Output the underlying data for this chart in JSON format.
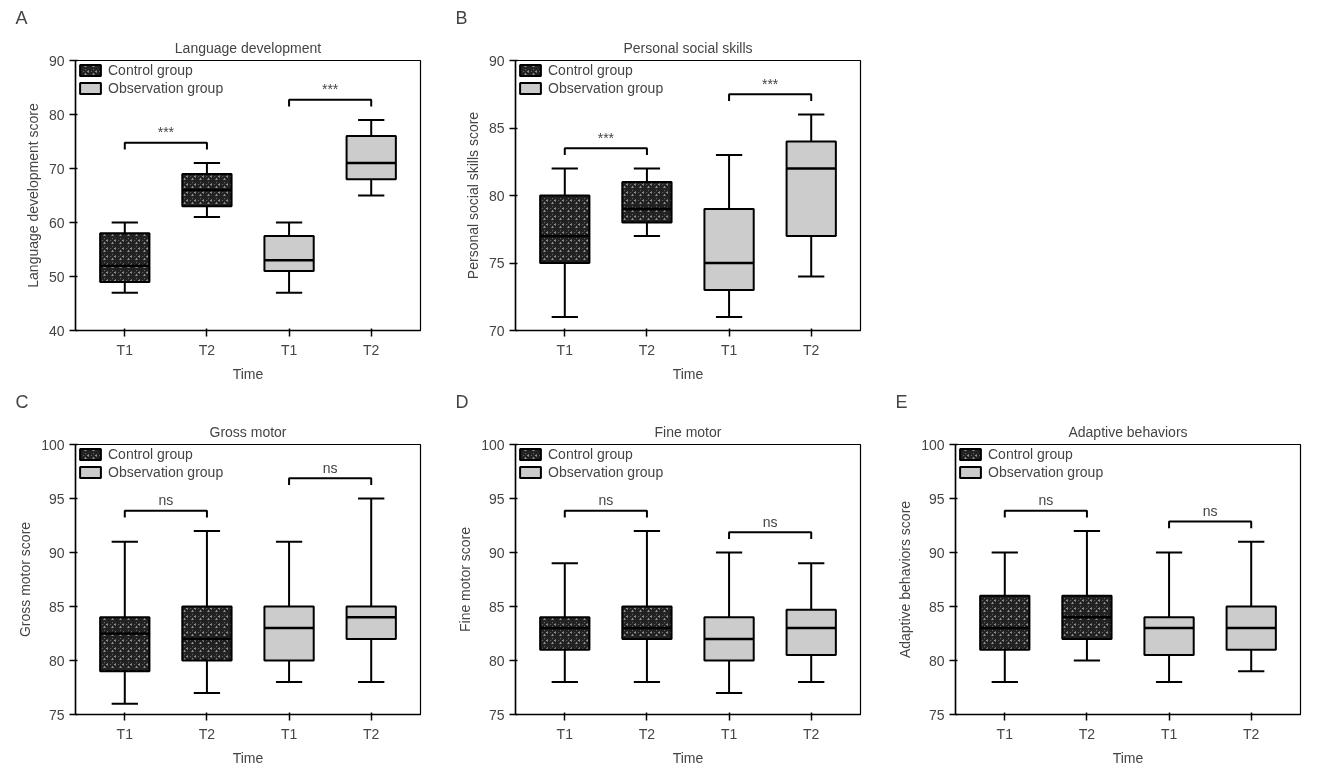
{
  "chart_data": [
    {
      "type": "box",
      "title": "Language development",
      "xlabel": "Time",
      "ylabel": "Language development score",
      "categories": [
        "T1",
        "T2",
        "T1",
        "T2"
      ],
      "ylim": [
        40,
        90
      ],
      "yticks": [
        40,
        50,
        60,
        70,
        80,
        90
      ],
      "grid": false,
      "legend": "top left",
      "series": [
        {
          "name": "Control group",
          "color": "#b4b4b4",
          "boxes": [
            {
              "low": 47,
              "q1": 49,
              "median": 52,
              "q3": 58,
              "high": 60
            },
            {
              "low": 61,
              "q1": 63,
              "median": 66,
              "q3": 69,
              "high": 71
            },
            null,
            null
          ]
        },
        {
          "name": "Observation group",
          "color": "#cccccc",
          "boxes": [
            null,
            null,
            {
              "low": 47,
              "q1": 51,
              "median": 53,
              "q3": 57.5,
              "high": 60
            },
            {
              "low": 65,
              "q1": 68,
              "median": 71,
              "q3": 76,
              "high": 79
            }
          ]
        }
      ],
      "annotations": [
        "A",
        "***",
        "***"
      ]
    },
    {
      "type": "box",
      "title": "Personal social skills",
      "xlabel": "Time",
      "ylabel": "Personal social skills score",
      "categories": [
        "T1",
        "T2",
        "T1",
        "T2"
      ],
      "ylim": [
        70,
        90
      ],
      "yticks": [
        70,
        75,
        80,
        85,
        90
      ],
      "grid": false,
      "legend": "top left",
      "series": [
        {
          "name": "Control group",
          "color": "#b4b4b4",
          "boxes": [
            {
              "low": 71,
              "q1": 75,
              "median": 77,
              "q3": 80,
              "high": 82
            },
            {
              "low": 77,
              "q1": 78,
              "median": 79,
              "q3": 81,
              "high": 82
            },
            null,
            null
          ]
        },
        {
          "name": "Observation group",
          "color": "#cccccc",
          "boxes": [
            null,
            null,
            {
              "low": 71,
              "q1": 73,
              "median": 75,
              "q3": 79,
              "high": 83
            },
            {
              "low": 74,
              "q1": 77,
              "median": 82,
              "q3": 84,
              "high": 86
            }
          ]
        }
      ],
      "annotations": [
        "B",
        "***",
        "***"
      ]
    },
    {
      "type": "box",
      "title": "Gross motor",
      "xlabel": "Time",
      "ylabel": "Gross motor score",
      "categories": [
        "T1",
        "T2",
        "T1",
        "T2"
      ],
      "ylim": [
        75,
        100
      ],
      "yticks": [
        75,
        80,
        85,
        90,
        95,
        100
      ],
      "grid": false,
      "legend": "top left",
      "series": [
        {
          "name": "Control group",
          "color": "#b4b4b4",
          "boxes": [
            {
              "low": 76,
              "q1": 79,
              "median": 82.5,
              "q3": 84,
              "high": 91
            },
            {
              "low": 77,
              "q1": 80,
              "median": 82,
              "q3": 85,
              "high": 92
            },
            null,
            null
          ]
        },
        {
          "name": "Observation group",
          "color": "#cccccc",
          "boxes": [
            null,
            null,
            {
              "low": 78,
              "q1": 80,
              "median": 83,
              "q3": 85,
              "high": 91
            },
            {
              "low": 78,
              "q1": 82,
              "median": 84,
              "q3": 85,
              "high": 95
            }
          ]
        }
      ],
      "annotations": [
        "C",
        "ns",
        "ns"
      ]
    },
    {
      "type": "box",
      "title": "Fine motor",
      "xlabel": "Time",
      "ylabel": "Fine motor score",
      "categories": [
        "T1",
        "T2",
        "T1",
        "T2"
      ],
      "ylim": [
        75,
        100
      ],
      "yticks": [
        75,
        80,
        85,
        90,
        95,
        100
      ],
      "grid": false,
      "legend": "top left",
      "series": [
        {
          "name": "Control group",
          "color": "#b4b4b4",
          "boxes": [
            {
              "low": 78,
              "q1": 81,
              "median": 83,
              "q3": 84,
              "high": 89
            },
            {
              "low": 78,
              "q1": 82,
              "median": 83,
              "q3": 85,
              "high": 92
            },
            null,
            null
          ]
        },
        {
          "name": "Observation group",
          "color": "#cccccc",
          "boxes": [
            null,
            null,
            {
              "low": 77,
              "q1": 80,
              "median": 82,
              "q3": 84,
              "high": 90
            },
            {
              "low": 78,
              "q1": 80.5,
              "median": 83,
              "q3": 84.7,
              "high": 89
            }
          ]
        }
      ],
      "annotations": [
        "D",
        "ns",
        "ns"
      ]
    },
    {
      "type": "box",
      "title": "Adaptive behaviors",
      "xlabel": "Time",
      "ylabel": "Adaptive behaviors score",
      "categories": [
        "T1",
        "T2",
        "T1",
        "T2"
      ],
      "ylim": [
        75,
        100
      ],
      "yticks": [
        75,
        80,
        85,
        90,
        95,
        100
      ],
      "grid": false,
      "legend": "top left",
      "series": [
        {
          "name": "Control group",
          "color": "#b4b4b4",
          "boxes": [
            {
              "low": 78,
              "q1": 81,
              "median": 83,
              "q3": 86,
              "high": 90
            },
            {
              "low": 80,
              "q1": 82,
              "median": 84,
              "q3": 86,
              "high": 92
            },
            null,
            null
          ]
        },
        {
          "name": "Observation group",
          "color": "#cccccc",
          "boxes": [
            null,
            null,
            {
              "low": 78,
              "q1": 80.5,
              "median": 83,
              "q3": 84,
              "high": 90
            },
            {
              "low": 79,
              "q1": 81,
              "median": 83,
              "q3": 85,
              "high": 91
            }
          ]
        }
      ],
      "annotations": [
        "E",
        "ns",
        "ns"
      ]
    }
  ]
}
